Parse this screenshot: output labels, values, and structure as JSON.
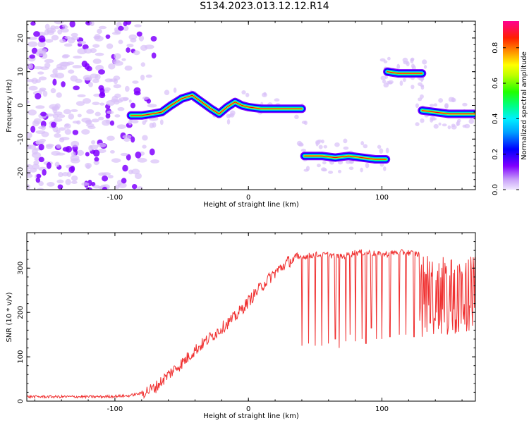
{
  "title": "S134.2023.013.12.12.R14",
  "chart_data": [
    {
      "type": "heatmap",
      "xlabel": "Height of straight line (km)",
      "ylabel": "Frequency (Hz)",
      "xlim": [
        -166,
        170
      ],
      "ylim": [
        -25,
        25
      ],
      "xticks": [
        -100,
        0,
        100
      ],
      "yticks": [
        20,
        10,
        0,
        -10,
        -20
      ],
      "colorbar": {
        "label": "Normalized spectral amplitude",
        "range": [
          0.0,
          0.95
        ],
        "ticks": [
          0.0,
          0.2,
          0.4,
          0.6,
          0.8
        ]
      },
      "colormap": [
        "#d8c0f8",
        "#8000ff",
        "#0000ff",
        "#00c8ff",
        "#00ff80",
        "#40ff00",
        "#ffff00",
        "#ff8000",
        "#ff0000",
        "#ff0080"
      ],
      "noise_region_x": [
        -166,
        -78
      ],
      "ridge_segments": [
        {
          "x": [
            -88,
            -80,
            -72,
            -65,
            -58,
            -50,
            -42,
            -35,
            -28,
            -22,
            -16,
            -10,
            -5,
            0,
            10,
            20,
            30,
            40
          ],
          "y": [
            -3,
            -3,
            -2.5,
            -2,
            0,
            2,
            3,
            1,
            -1,
            -2.5,
            -0.5,
            1,
            0,
            -0.5,
            -1,
            -1,
            -1,
            -1
          ]
        },
        {
          "x": [
            42,
            55,
            65,
            75,
            85,
            95,
            103
          ],
          "y": [
            -15,
            -15,
            -15.5,
            -15,
            -15.5,
            -16,
            -16
          ]
        },
        {
          "x": [
            104,
            112,
            120,
            130
          ],
          "y": [
            10,
            9.5,
            9.5,
            9.5
          ]
        },
        {
          "x": [
            130,
            140,
            150,
            160,
            170
          ],
          "y": [
            -1.5,
            -2,
            -2.5,
            -2.5,
            -2.5
          ]
        }
      ]
    },
    {
      "type": "line",
      "xlabel": "Height of straight line (km)",
      "ylabel": "SNR (10 * v/v)",
      "xlim": [
        -166,
        170
      ],
      "ylim": [
        0,
        380
      ],
      "xticks": [
        -100,
        0,
        100
      ],
      "yticks": [
        0,
        100,
        200,
        300
      ],
      "series": [
        {
          "color": "#f03030",
          "x": [
            -166,
            -150,
            -130,
            -110,
            -90,
            -80,
            -70,
            -60,
            -50,
            -40,
            -30,
            -20,
            -10,
            0,
            10,
            20,
            30,
            40,
            50,
            60,
            70,
            80,
            90,
            100,
            110,
            120,
            130,
            140,
            150,
            160,
            170
          ],
          "y": [
            10,
            10,
            10,
            10,
            12,
            18,
            30,
            60,
            85,
            115,
            140,
            165,
            190,
            225,
            260,
            290,
            315,
            325,
            330,
            330,
            325,
            335,
            335,
            330,
            335,
            335,
            330,
            250,
            255,
            260,
            255
          ],
          "dips": [
            {
              "x": 40,
              "y": 125
            },
            {
              "x": 45,
              "y": 130
            },
            {
              "x": 50,
              "y": 125
            },
            {
              "x": 55,
              "y": 125
            },
            {
              "x": 60,
              "y": 130
            },
            {
              "x": 65,
              "y": 140
            },
            {
              "x": 68,
              "y": 120
            },
            {
              "x": 73,
              "y": 135
            },
            {
              "x": 76,
              "y": 150
            },
            {
              "x": 80,
              "y": 135
            },
            {
              "x": 85,
              "y": 140
            },
            {
              "x": 88,
              "y": 130
            },
            {
              "x": 92,
              "y": 165
            },
            {
              "x": 96,
              "y": 140
            },
            {
              "x": 100,
              "y": 140
            },
            {
              "x": 106,
              "y": 145
            },
            {
              "x": 113,
              "y": 150
            },
            {
              "x": 118,
              "y": 150
            },
            {
              "x": 124,
              "y": 145
            },
            {
              "x": 130,
              "y": 145
            }
          ],
          "noise_band_x": [
            128,
            170
          ],
          "noise_band_y": [
            150,
            330
          ]
        }
      ]
    }
  ]
}
